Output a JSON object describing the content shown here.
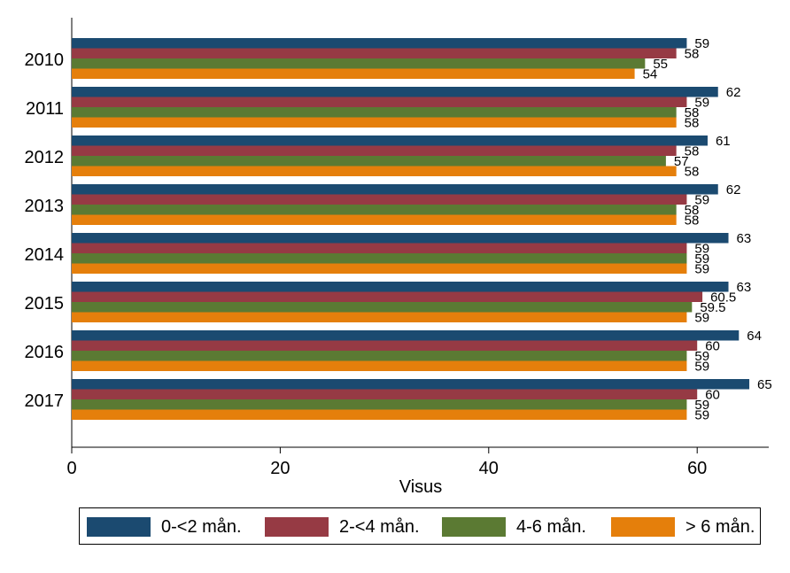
{
  "chart_data": {
    "type": "bar",
    "orientation": "horizontal",
    "categories": [
      "2010",
      "2011",
      "2012",
      "2013",
      "2014",
      "2015",
      "2016",
      "2017"
    ],
    "series": [
      {
        "name": "0-<2 mån.",
        "color": "#1b4a70",
        "values": [
          59,
          62,
          61,
          62,
          63,
          63,
          64,
          65
        ]
      },
      {
        "name": "2-<4 mån.",
        "color": "#963a44",
        "values": [
          58,
          59,
          58,
          59,
          59,
          60.5,
          60,
          60
        ]
      },
      {
        "name": "4-6 mån.",
        "color": "#5b7a33",
        "values": [
          55,
          58,
          57,
          58,
          59,
          59.5,
          59,
          59
        ]
      },
      {
        "name": "> 6 mån.",
        "color": "#e57f0b",
        "values": [
          54,
          58,
          58,
          58,
          59,
          59,
          59,
          59
        ]
      }
    ],
    "data_labels": [
      [
        "59",
        "58",
        "55",
        "54"
      ],
      [
        "62",
        "59",
        "58",
        "58"
      ],
      [
        "61",
        "58",
        "57",
        "58"
      ],
      [
        "62",
        "59",
        "58",
        "58"
      ],
      [
        "63",
        "59",
        "59",
        "59"
      ],
      [
        "63",
        "60.5",
        "59.5",
        "59"
      ],
      [
        "64",
        "60",
        "59",
        "59"
      ],
      [
        "65",
        "60",
        "59",
        "59"
      ]
    ],
    "xlabel": "Visus",
    "ylabel": "",
    "xlim": [
      0,
      67
    ],
    "xticks": [
      "0",
      "20",
      "40",
      "60"
    ],
    "grid": false,
    "legend_position": "bottom"
  }
}
